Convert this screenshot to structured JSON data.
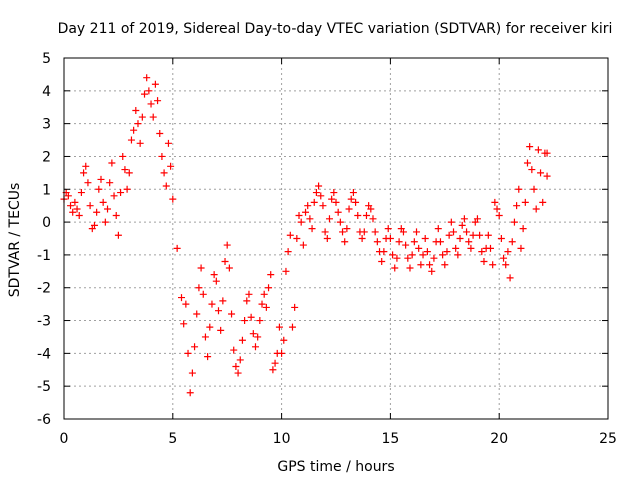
{
  "chart_data": {
    "type": "scatter",
    "title": "Day 211 of 2019, Sidereal Day-to-day VTEC variation (SDTVAR) for receiver kiri",
    "xlabel": "GPS time / hours",
    "ylabel": "SDTVAR / TECUs",
    "xlim": [
      0,
      25
    ],
    "ylim": [
      -6,
      5
    ],
    "x_ticks": [
      0,
      5,
      10,
      15,
      20,
      25
    ],
    "x_tick_labels": [
      "0",
      "5",
      "10",
      "15",
      "20",
      "25"
    ],
    "y_ticks": [
      -6,
      -5,
      -4,
      -3,
      -2,
      -1,
      0,
      1,
      2,
      3,
      4,
      5
    ],
    "y_tick_labels": [
      "-6",
      "-5",
      "-4",
      "-3",
      "-2",
      "-1",
      "0",
      "1",
      "2",
      "3",
      "4",
      "5"
    ],
    "grid": true,
    "marker": "+",
    "color": "#ff0000",
    "series": [
      {
        "name": "SDTVAR",
        "points": [
          [
            0.0,
            0.7
          ],
          [
            0.1,
            0.9
          ],
          [
            0.2,
            0.8
          ],
          [
            0.3,
            0.5
          ],
          [
            0.4,
            0.3
          ],
          [
            0.5,
            0.6
          ],
          [
            0.6,
            0.4
          ],
          [
            0.7,
            0.2
          ],
          [
            0.8,
            0.9
          ],
          [
            0.9,
            1.5
          ],
          [
            1.0,
            1.7
          ],
          [
            1.1,
            1.2
          ],
          [
            1.2,
            0.5
          ],
          [
            1.3,
            -0.2
          ],
          [
            1.4,
            -0.1
          ],
          [
            1.5,
            0.3
          ],
          [
            1.6,
            1.0
          ],
          [
            1.7,
            1.3
          ],
          [
            1.8,
            0.6
          ],
          [
            1.9,
            0.0
          ],
          [
            2.0,
            0.4
          ],
          [
            2.1,
            1.2
          ],
          [
            2.2,
            1.8
          ],
          [
            2.3,
            0.8
          ],
          [
            2.4,
            0.2
          ],
          [
            2.5,
            -0.4
          ],
          [
            2.6,
            0.9
          ],
          [
            2.7,
            2.0
          ],
          [
            2.8,
            1.6
          ],
          [
            2.9,
            1.0
          ],
          [
            3.0,
            1.5
          ],
          [
            3.1,
            2.5
          ],
          [
            3.2,
            2.8
          ],
          [
            3.3,
            3.4
          ],
          [
            3.4,
            3.0
          ],
          [
            3.5,
            2.4
          ],
          [
            3.6,
            3.2
          ],
          [
            3.7,
            3.9
          ],
          [
            3.8,
            4.4
          ],
          [
            3.9,
            4.0
          ],
          [
            4.0,
            3.6
          ],
          [
            4.1,
            3.2
          ],
          [
            4.2,
            4.2
          ],
          [
            4.3,
            3.7
          ],
          [
            4.4,
            2.7
          ],
          [
            4.5,
            2.0
          ],
          [
            4.6,
            1.5
          ],
          [
            4.7,
            1.1
          ],
          [
            4.8,
            2.4
          ],
          [
            4.9,
            1.7
          ],
          [
            5.0,
            0.7
          ],
          [
            5.2,
            -0.8
          ],
          [
            5.4,
            -2.3
          ],
          [
            5.5,
            -3.1
          ],
          [
            5.6,
            -2.5
          ],
          [
            5.7,
            -4.0
          ],
          [
            5.8,
            -5.2
          ],
          [
            5.9,
            -4.6
          ],
          [
            6.0,
            -3.8
          ],
          [
            6.1,
            -2.8
          ],
          [
            6.2,
            -2.0
          ],
          [
            6.3,
            -1.4
          ],
          [
            6.4,
            -2.2
          ],
          [
            6.5,
            -3.5
          ],
          [
            6.6,
            -4.1
          ],
          [
            6.7,
            -3.2
          ],
          [
            6.8,
            -2.5
          ],
          [
            6.9,
            -1.6
          ],
          [
            7.0,
            -1.8
          ],
          [
            7.1,
            -2.7
          ],
          [
            7.2,
            -3.3
          ],
          [
            7.3,
            -2.4
          ],
          [
            7.4,
            -1.2
          ],
          [
            7.5,
            -0.7
          ],
          [
            7.6,
            -1.4
          ],
          [
            7.7,
            -2.8
          ],
          [
            7.8,
            -3.9
          ],
          [
            7.9,
            -4.4
          ],
          [
            8.0,
            -4.6
          ],
          [
            8.1,
            -4.2
          ],
          [
            8.2,
            -3.6
          ],
          [
            8.3,
            -3.0
          ],
          [
            8.4,
            -2.4
          ],
          [
            8.5,
            -2.2
          ],
          [
            8.6,
            -2.9
          ],
          [
            8.7,
            -3.4
          ],
          [
            8.8,
            -3.8
          ],
          [
            8.9,
            -3.5
          ],
          [
            9.0,
            -3.0
          ],
          [
            9.1,
            -2.5
          ],
          [
            9.2,
            -2.2
          ],
          [
            9.3,
            -2.6
          ],
          [
            9.4,
            -2.0
          ],
          [
            9.5,
            -1.6
          ],
          [
            9.6,
            -4.5
          ],
          [
            9.7,
            -4.3
          ],
          [
            9.8,
            -4.0
          ],
          [
            9.9,
            -3.2
          ],
          [
            10.0,
            -4.0
          ],
          [
            10.1,
            -3.6
          ],
          [
            10.2,
            -1.5
          ],
          [
            10.3,
            -0.9
          ],
          [
            10.4,
            -0.4
          ],
          [
            10.5,
            -3.2
          ],
          [
            10.6,
            -2.6
          ],
          [
            10.7,
            -0.5
          ],
          [
            10.8,
            0.2
          ],
          [
            10.9,
            0.0
          ],
          [
            11.0,
            -0.7
          ],
          [
            11.1,
            0.3
          ],
          [
            11.2,
            0.5
          ],
          [
            11.3,
            0.1
          ],
          [
            11.4,
            -0.2
          ],
          [
            11.5,
            0.6
          ],
          [
            11.6,
            0.9
          ],
          [
            11.7,
            1.1
          ],
          [
            11.8,
            0.8
          ],
          [
            11.9,
            0.5
          ],
          [
            12.0,
            -0.3
          ],
          [
            12.1,
            -0.5
          ],
          [
            12.2,
            0.1
          ],
          [
            12.3,
            0.7
          ],
          [
            12.4,
            0.9
          ],
          [
            12.5,
            0.6
          ],
          [
            12.6,
            0.3
          ],
          [
            12.7,
            0.0
          ],
          [
            12.8,
            -0.3
          ],
          [
            12.9,
            -0.6
          ],
          [
            13.0,
            -0.2
          ],
          [
            13.1,
            0.4
          ],
          [
            13.2,
            0.7
          ],
          [
            13.3,
            0.9
          ],
          [
            13.4,
            0.6
          ],
          [
            13.5,
            0.2
          ],
          [
            13.6,
            -0.3
          ],
          [
            13.7,
            -0.5
          ],
          [
            13.8,
            -0.3
          ],
          [
            13.9,
            0.2
          ],
          [
            14.0,
            0.5
          ],
          [
            14.1,
            0.4
          ],
          [
            14.2,
            0.1
          ],
          [
            14.3,
            -0.3
          ],
          [
            14.4,
            -0.6
          ],
          [
            14.5,
            -0.9
          ],
          [
            14.6,
            -1.2
          ],
          [
            14.7,
            -0.9
          ],
          [
            14.8,
            -0.5
          ],
          [
            14.9,
            -0.2
          ],
          [
            15.0,
            -0.5
          ],
          [
            15.1,
            -1.0
          ],
          [
            15.2,
            -1.4
          ],
          [
            15.3,
            -1.1
          ],
          [
            15.4,
            -0.6
          ],
          [
            15.5,
            -0.2
          ],
          [
            15.6,
            -0.3
          ],
          [
            15.7,
            -0.7
          ],
          [
            15.8,
            -1.1
          ],
          [
            15.9,
            -1.4
          ],
          [
            16.0,
            -1.0
          ],
          [
            16.1,
            -0.6
          ],
          [
            16.2,
            -0.3
          ],
          [
            16.3,
            -0.8
          ],
          [
            16.4,
            -1.3
          ],
          [
            16.5,
            -1.0
          ],
          [
            16.6,
            -0.5
          ],
          [
            16.7,
            -0.9
          ],
          [
            16.8,
            -1.3
          ],
          [
            16.9,
            -1.5
          ],
          [
            17.0,
            -1.1
          ],
          [
            17.1,
            -0.6
          ],
          [
            17.2,
            -0.2
          ],
          [
            17.3,
            -0.6
          ],
          [
            17.4,
            -1.0
          ],
          [
            17.5,
            -1.3
          ],
          [
            17.6,
            -0.9
          ],
          [
            17.7,
            -0.4
          ],
          [
            17.8,
            0.0
          ],
          [
            17.9,
            -0.3
          ],
          [
            18.0,
            -0.8
          ],
          [
            18.1,
            -1.0
          ],
          [
            18.2,
            -0.5
          ],
          [
            18.3,
            -0.1
          ],
          [
            18.4,
            0.1
          ],
          [
            18.5,
            -0.3
          ],
          [
            18.6,
            -0.6
          ],
          [
            18.7,
            -0.8
          ],
          [
            18.8,
            -0.4
          ],
          [
            18.9,
            0.0
          ],
          [
            19.0,
            0.1
          ],
          [
            19.1,
            -0.4
          ],
          [
            19.2,
            -0.9
          ],
          [
            19.3,
            -1.2
          ],
          [
            19.4,
            -0.8
          ],
          [
            19.5,
            -0.4
          ],
          [
            19.6,
            -0.8
          ],
          [
            19.7,
            -1.3
          ],
          [
            19.8,
            0.6
          ],
          [
            19.9,
            0.4
          ],
          [
            20.0,
            0.2
          ],
          [
            20.1,
            -0.5
          ],
          [
            20.2,
            -1.1
          ],
          [
            20.3,
            -1.3
          ],
          [
            20.4,
            -0.9
          ],
          [
            20.5,
            -1.7
          ],
          [
            20.6,
            -0.6
          ],
          [
            20.7,
            0.0
          ],
          [
            20.8,
            0.5
          ],
          [
            20.9,
            1.0
          ],
          [
            21.0,
            -0.8
          ],
          [
            21.1,
            -0.2
          ],
          [
            21.2,
            0.6
          ],
          [
            21.3,
            1.8
          ],
          [
            21.4,
            2.3
          ],
          [
            21.5,
            1.6
          ],
          [
            21.6,
            1.0
          ],
          [
            21.7,
            0.4
          ],
          [
            21.8,
            2.2
          ],
          [
            21.9,
            1.5
          ],
          [
            22.0,
            0.6
          ],
          [
            22.1,
            2.1
          ],
          [
            22.2,
            1.4
          ],
          [
            22.2,
            2.1
          ]
        ]
      }
    ]
  }
}
